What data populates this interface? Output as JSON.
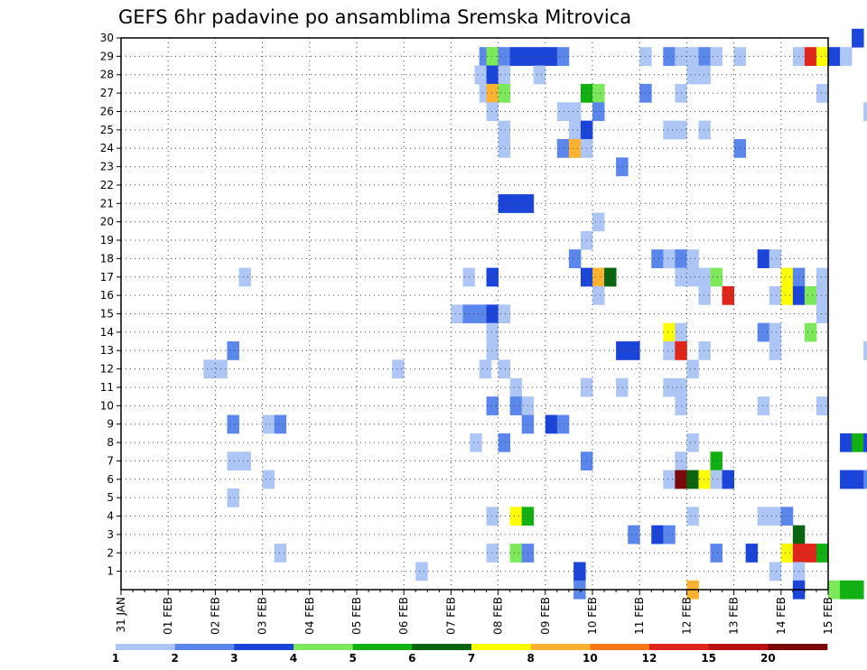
{
  "chart_data": {
    "type": "heatmap",
    "title": "GEFS 6hr padavine po ansamblima Sremska Mitrovica",
    "y_ticks": [
      "1",
      "2",
      "3",
      "4",
      "5",
      "6",
      "7",
      "8",
      "9",
      "10",
      "11",
      "12",
      "13",
      "14",
      "15",
      "16",
      "17",
      "18",
      "19",
      "20",
      "21",
      "22",
      "23",
      "24",
      "25",
      "26",
      "27",
      "28",
      "29",
      "30"
    ],
    "x_ticks": [
      "31 JAN",
      "01 FEB",
      "02 FEB",
      "03 FEB",
      "04 FEB",
      "05 FEB",
      "06 FEB",
      "07 FEB",
      "08 FEB",
      "09 FEB",
      "10 FEB",
      "11 FEB",
      "12 FEB",
      "13 FEB",
      "14 FEB",
      "15 FEB"
    ],
    "grid": true,
    "legend_position": "bottom",
    "legend": {
      "labels": [
        "1",
        "2",
        "3",
        "4",
        "5",
        "6",
        "7",
        "8",
        "10",
        "12",
        "15",
        "20"
      ],
      "colors": [
        "#aec6f6",
        "#5b86ec",
        "#1b45d8",
        "#7ce85a",
        "#12b012",
        "#0a6410",
        "#ffff00",
        "#ffb230",
        "#ff7818",
        "#e0261a",
        "#b81010",
        "#7a0a0a"
      ]
    },
    "cells": [
      [
        29,
        7.6,
        2
      ],
      [
        29,
        7.75,
        4
      ],
      [
        29,
        8.0,
        2
      ],
      [
        29,
        8.25,
        3
      ],
      [
        29,
        8.5,
        3
      ],
      [
        29,
        8.75,
        3
      ],
      [
        29,
        9.0,
        3
      ],
      [
        29,
        9.25,
        2
      ],
      [
        29,
        11.0,
        1
      ],
      [
        29,
        11.5,
        2
      ],
      [
        29,
        11.75,
        1
      ],
      [
        29,
        12.0,
        1
      ],
      [
        29,
        12.25,
        2
      ],
      [
        29,
        12.5,
        1
      ],
      [
        29,
        13.0,
        1
      ],
      [
        29,
        14.25,
        1
      ],
      [
        29,
        14.5,
        10
      ],
      [
        29,
        14.75,
        7
      ],
      [
        29,
        15.0,
        3
      ],
      [
        29,
        15.25,
        1
      ],
      [
        30,
        15.5,
        3
      ],
      [
        28,
        7.5,
        1
      ],
      [
        28,
        7.75,
        3
      ],
      [
        28,
        8.0,
        1
      ],
      [
        28,
        8.75,
        1
      ],
      [
        28,
        12.0,
        1
      ],
      [
        28,
        12.25,
        1
      ],
      [
        27,
        7.6,
        1
      ],
      [
        27,
        7.75,
        8
      ],
      [
        27,
        8.0,
        4
      ],
      [
        27,
        9.75,
        5
      ],
      [
        27,
        10.0,
        4
      ],
      [
        27,
        11.0,
        2
      ],
      [
        27,
        11.75,
        1
      ],
      [
        27,
        14.75,
        1
      ],
      [
        26,
        7.75,
        1
      ],
      [
        26,
        9.25,
        1
      ],
      [
        26,
        9.5,
        1
      ],
      [
        26,
        10.0,
        2
      ],
      [
        26,
        15.75,
        1
      ],
      [
        25,
        8.0,
        1
      ],
      [
        25,
        9.5,
        1
      ],
      [
        25,
        9.75,
        3
      ],
      [
        25,
        11.5,
        1
      ],
      [
        25,
        11.75,
        1
      ],
      [
        25,
        12.25,
        1
      ],
      [
        24,
        8.0,
        1
      ],
      [
        24,
        9.25,
        2
      ],
      [
        24,
        9.5,
        8
      ],
      [
        24,
        9.75,
        1
      ],
      [
        24,
        13.0,
        2
      ],
      [
        23,
        10.5,
        2
      ],
      [
        21,
        8.0,
        3
      ],
      [
        21,
        8.25,
        3
      ],
      [
        21,
        8.5,
        3
      ],
      [
        20,
        10.0,
        1
      ],
      [
        19,
        9.75,
        1
      ],
      [
        18,
        9.5,
        2
      ],
      [
        18,
        11.25,
        2
      ],
      [
        18,
        11.5,
        1
      ],
      [
        18,
        11.75,
        2
      ],
      [
        18,
        12.0,
        1
      ],
      [
        18,
        13.5,
        3
      ],
      [
        18,
        13.75,
        1
      ],
      [
        17,
        2.5,
        1
      ],
      [
        17,
        7.25,
        1
      ],
      [
        17,
        7.75,
        3
      ],
      [
        17,
        9.75,
        3
      ],
      [
        17,
        10.0,
        8
      ],
      [
        17,
        10.25,
        6
      ],
      [
        17,
        11.75,
        1
      ],
      [
        17,
        12.0,
        1
      ],
      [
        17,
        12.25,
        1
      ],
      [
        17,
        12.5,
        4
      ],
      [
        17,
        14.0,
        7
      ],
      [
        17,
        14.25,
        2
      ],
      [
        17,
        14.75,
        1
      ],
      [
        16,
        10.0,
        1
      ],
      [
        16,
        12.25,
        1
      ],
      [
        16,
        12.75,
        10
      ],
      [
        16,
        13.75,
        1
      ],
      [
        16,
        14.0,
        7
      ],
      [
        16,
        14.25,
        3
      ],
      [
        16,
        14.5,
        4
      ],
      [
        16,
        14.75,
        1
      ],
      [
        15,
        7.0,
        1
      ],
      [
        15,
        7.25,
        2
      ],
      [
        15,
        7.5,
        2
      ],
      [
        15,
        7.75,
        3
      ],
      [
        15,
        8.0,
        1
      ],
      [
        15,
        14.75,
        1
      ],
      [
        14,
        7.75,
        1
      ],
      [
        14,
        11.5,
        7
      ],
      [
        14,
        11.75,
        1
      ],
      [
        14,
        13.5,
        2
      ],
      [
        14,
        13.75,
        1
      ],
      [
        14,
        14.5,
        4
      ],
      [
        13,
        2.25,
        2
      ],
      [
        13,
        7.75,
        1
      ],
      [
        13,
        10.5,
        3
      ],
      [
        13,
        10.75,
        3
      ],
      [
        13,
        11.5,
        1
      ],
      [
        13,
        11.75,
        10
      ],
      [
        13,
        12.25,
        1
      ],
      [
        13,
        13.75,
        1
      ],
      [
        13,
        15.75,
        1
      ],
      [
        12,
        1.75,
        1
      ],
      [
        12,
        2.0,
        1
      ],
      [
        12,
        5.75,
        1
      ],
      [
        12,
        7.6,
        1
      ],
      [
        12,
        8.0,
        1
      ],
      [
        12,
        12.0,
        1
      ],
      [
        11,
        8.25,
        1
      ],
      [
        11,
        9.75,
        1
      ],
      [
        11,
        10.5,
        1
      ],
      [
        11,
        11.5,
        1
      ],
      [
        11,
        11.75,
        1
      ],
      [
        10,
        7.75,
        2
      ],
      [
        10,
        8.25,
        2
      ],
      [
        10,
        8.5,
        1
      ],
      [
        10,
        11.75,
        1
      ],
      [
        10,
        13.5,
        1
      ],
      [
        10,
        14.75,
        1
      ],
      [
        9,
        2.25,
        2
      ],
      [
        9,
        3.0,
        1
      ],
      [
        9,
        3.25,
        2
      ],
      [
        9,
        8.5,
        2
      ],
      [
        9,
        9.0,
        3
      ],
      [
        9,
        9.25,
        2
      ],
      [
        8,
        7.4,
        1
      ],
      [
        8,
        8.0,
        2
      ],
      [
        8,
        12.0,
        1
      ],
      [
        8,
        15.25,
        3
      ],
      [
        8,
        15.5,
        5
      ],
      [
        8,
        15.75,
        3
      ],
      [
        7,
        2.25,
        1
      ],
      [
        7,
        2.5,
        1
      ],
      [
        7,
        9.75,
        2
      ],
      [
        7,
        11.75,
        1
      ],
      [
        7,
        12.5,
        5
      ],
      [
        6,
        3.0,
        1
      ],
      [
        6,
        11.5,
        1
      ],
      [
        6,
        11.75,
        12
      ],
      [
        6,
        12.0,
        6
      ],
      [
        6,
        12.25,
        7
      ],
      [
        6,
        12.5,
        1
      ],
      [
        6,
        12.75,
        3
      ],
      [
        6,
        15.25,
        3
      ],
      [
        6,
        15.5,
        3
      ],
      [
        6,
        15.75,
        2
      ],
      [
        5,
        2.25,
        1
      ],
      [
        4,
        7.75,
        1
      ],
      [
        4,
        8.25,
        7
      ],
      [
        4,
        8.5,
        5
      ],
      [
        4,
        12.0,
        1
      ],
      [
        4,
        13.5,
        1
      ],
      [
        4,
        13.75,
        1
      ],
      [
        4,
        14.0,
        2
      ],
      [
        3,
        10.75,
        2
      ],
      [
        3,
        11.25,
        3
      ],
      [
        3,
        11.5,
        2
      ],
      [
        3,
        14.25,
        6
      ],
      [
        2,
        3.25,
        1
      ],
      [
        2,
        7.75,
        1
      ],
      [
        2,
        8.25,
        4
      ],
      [
        2,
        8.5,
        2
      ],
      [
        2,
        12.5,
        2
      ],
      [
        2,
        13.25,
        3
      ],
      [
        2,
        14.0,
        7
      ],
      [
        2,
        14.25,
        10
      ],
      [
        2,
        14.5,
        10
      ],
      [
        2,
        14.75,
        5
      ],
      [
        1,
        6.25,
        1
      ],
      [
        1,
        9.6,
        3
      ],
      [
        1,
        13.75,
        1
      ],
      [
        1,
        14.25,
        1
      ],
      [
        0,
        9.6,
        2
      ],
      [
        0,
        12.0,
        8
      ],
      [
        0,
        14.25,
        3
      ],
      [
        0,
        15.0,
        4
      ],
      [
        0,
        15.25,
        5
      ],
      [
        0,
        15.5,
        5
      ]
    ]
  }
}
